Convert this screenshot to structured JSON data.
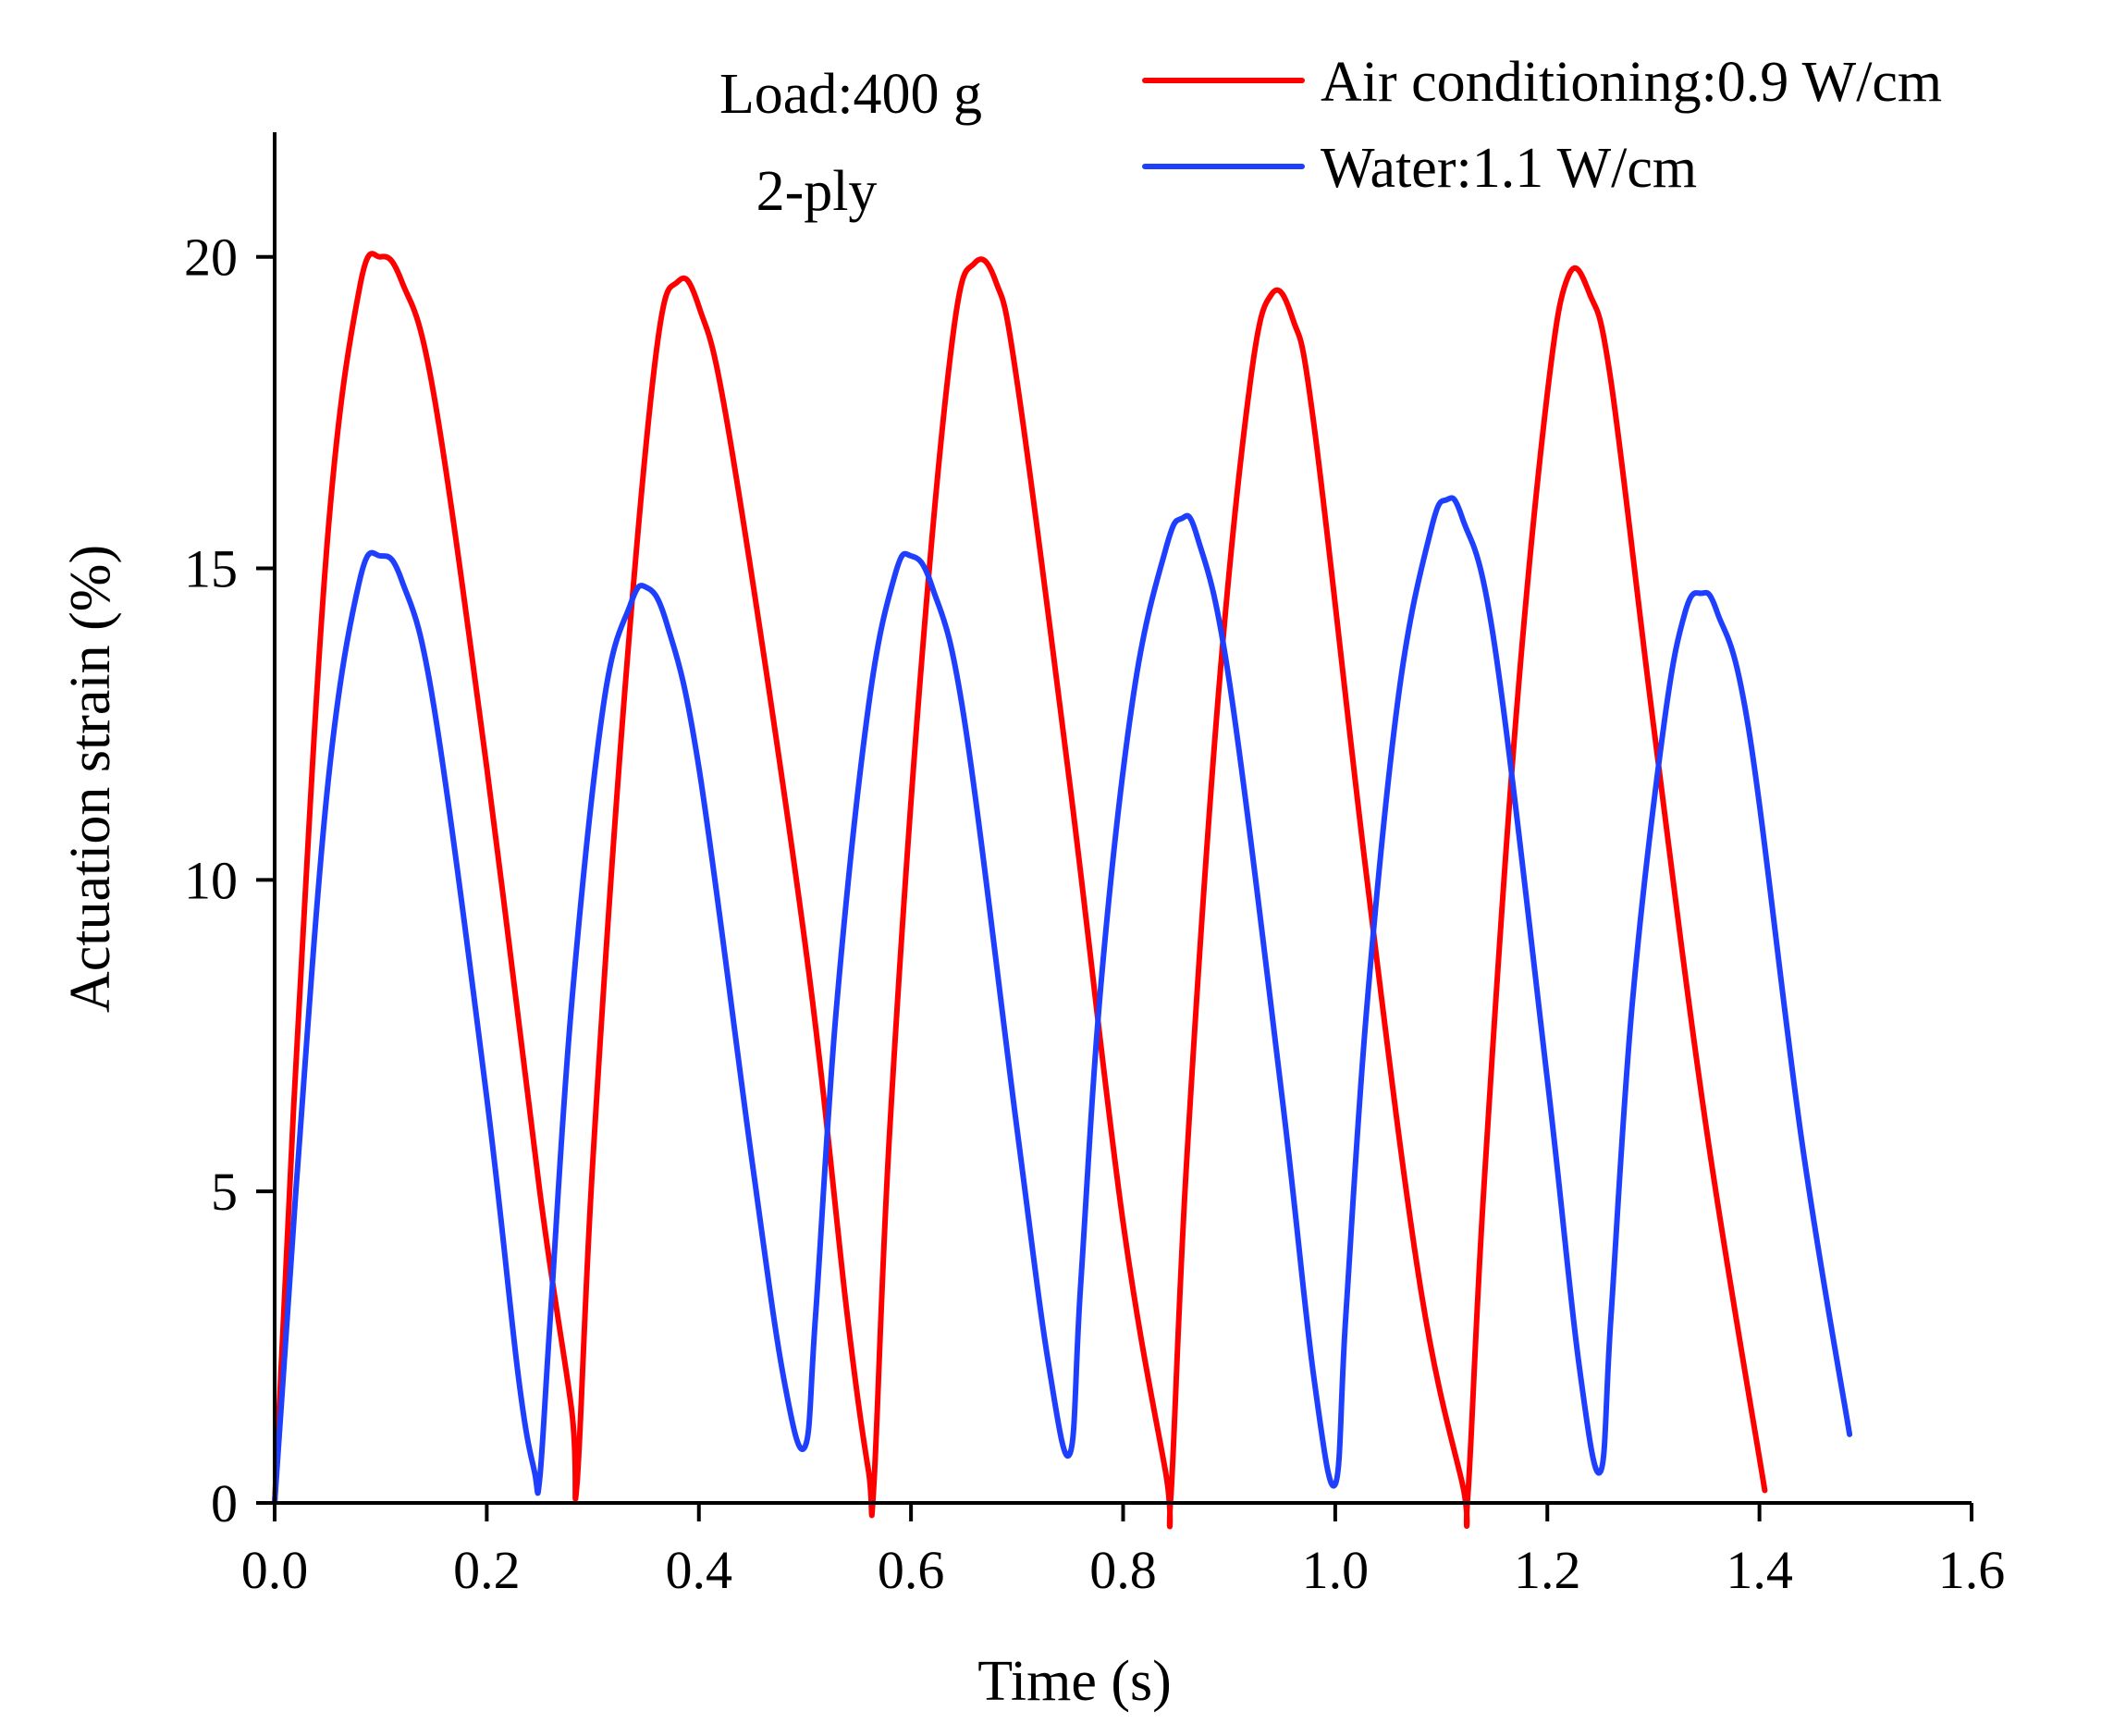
{
  "chart_data": {
    "type": "line",
    "title": "",
    "xlabel": "Time (s)",
    "ylabel": "Actuation  strain (%)",
    "xlim": [
      0.0,
      1.6
    ],
    "ylim": [
      0,
      22
    ],
    "xticks": [
      0.0,
      0.2,
      0.4,
      0.6,
      0.8,
      1.0,
      1.2,
      1.4,
      1.6
    ],
    "xtick_labels": [
      "0.0",
      "0.2",
      "0.4",
      "0.6",
      "0.8",
      "1.0",
      "1.2",
      "1.4",
      "1.6"
    ],
    "yticks": [
      0,
      5,
      10,
      15,
      20
    ],
    "ytick_labels": [
      "0",
      "5",
      "10",
      "15",
      "20"
    ],
    "grid": false,
    "legend_position": "top-right",
    "annotations": [
      "Load:400 g",
      "2-ply"
    ],
    "series": [
      {
        "name": "Air conditioning:0.9 W/cm",
        "color": "#ff0000",
        "x": [
          0.0,
          0.02,
          0.05,
          0.08,
          0.1,
          0.12,
          0.15,
          0.2,
          0.25,
          0.28,
          0.285,
          0.3,
          0.33,
          0.36,
          0.38,
          0.4,
          0.43,
          0.5,
          0.54,
          0.56,
          0.565,
          0.58,
          0.61,
          0.64,
          0.66,
          0.68,
          0.7,
          0.75,
          0.8,
          0.84,
          0.845,
          0.86,
          0.89,
          0.92,
          0.94,
          0.96,
          0.98,
          1.03,
          1.08,
          1.12,
          1.125,
          1.14,
          1.17,
          1.2,
          1.22,
          1.24,
          1.26,
          1.3,
          1.35,
          1.405
        ],
        "values": [
          0.0,
          7.0,
          15.5,
          19.5,
          20.0,
          19.6,
          17.8,
          11.8,
          5.0,
          1.5,
          0.3,
          5.5,
          13.0,
          18.5,
          19.6,
          19.2,
          17.0,
          9.0,
          3.0,
          0.5,
          0.3,
          6.0,
          13.5,
          18.8,
          19.9,
          19.6,
          18.0,
          11.5,
          4.5,
          0.5,
          0.1,
          5.5,
          13.0,
          18.0,
          19.4,
          19.0,
          17.3,
          10.0,
          3.5,
          0.3,
          0.1,
          5.0,
          12.5,
          17.8,
          19.7,
          19.4,
          18.0,
          12.5,
          6.0,
          0.2
        ]
      },
      {
        "name": "Water:1.1 W/cm",
        "color": "#1f3fff",
        "x": [
          0.0,
          0.02,
          0.05,
          0.08,
          0.1,
          0.12,
          0.15,
          0.2,
          0.23,
          0.245,
          0.25,
          0.26,
          0.28,
          0.31,
          0.335,
          0.35,
          0.37,
          0.4,
          0.45,
          0.48,
          0.5,
          0.51,
          0.53,
          0.56,
          0.585,
          0.6,
          0.62,
          0.65,
          0.7,
          0.73,
          0.75,
          0.76,
          0.78,
          0.81,
          0.84,
          0.855,
          0.87,
          0.9,
          0.95,
          0.98,
          1.0,
          1.01,
          1.03,
          1.06,
          1.09,
          1.105,
          1.12,
          1.15,
          1.2,
          1.23,
          1.25,
          1.26,
          1.28,
          1.31,
          1.33,
          1.345,
          1.36,
          1.39,
          1.44,
          1.485
        ],
        "values": [
          0.0,
          5.0,
          11.5,
          14.8,
          15.2,
          14.8,
          12.8,
          6.5,
          2.0,
          0.5,
          0.4,
          3.0,
          8.0,
          12.8,
          14.4,
          14.7,
          14.1,
          11.8,
          5.5,
          2.0,
          0.9,
          3.0,
          8.0,
          12.8,
          14.9,
          15.2,
          14.7,
          12.6,
          6.0,
          2.2,
          0.8,
          3.5,
          8.5,
          13.0,
          15.3,
          15.8,
          15.5,
          13.2,
          6.5,
          2.0,
          0.3,
          3.0,
          8.0,
          13.0,
          15.6,
          16.1,
          15.8,
          13.8,
          6.8,
          2.2,
          0.5,
          3.0,
          8.0,
          12.5,
          14.3,
          14.6,
          14.3,
          12.4,
          5.8,
          1.1
        ]
      }
    ]
  }
}
